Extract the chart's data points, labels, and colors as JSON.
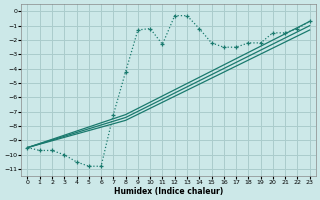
{
  "xlabel": "Humidex (Indice chaleur)",
  "background_color": "#cce8e8",
  "grid_color": "#aacccc",
  "line_color": "#1a7a6e",
  "xlim": [
    -0.5,
    23.5
  ],
  "ylim": [
    -11.5,
    0.5
  ],
  "xticks": [
    0,
    1,
    2,
    3,
    4,
    5,
    6,
    7,
    8,
    9,
    10,
    11,
    12,
    13,
    14,
    15,
    16,
    17,
    18,
    19,
    20,
    21,
    22,
    23
  ],
  "yticks": [
    0,
    -1,
    -2,
    -3,
    -4,
    -5,
    -6,
    -7,
    -8,
    -9,
    -10,
    -11
  ],
  "series_dotted_x": [
    0,
    1,
    2,
    3,
    4,
    5,
    6,
    7,
    8,
    9,
    10,
    11,
    12,
    13,
    14,
    15,
    16,
    17,
    18,
    19,
    20,
    21,
    22,
    23
  ],
  "series_dotted_y": [
    -9.5,
    -9.7,
    -9.7,
    -10.0,
    -10.5,
    -10.8,
    -10.8,
    -7.2,
    -4.2,
    -1.3,
    -1.2,
    -2.3,
    -0.3,
    -0.3,
    -1.2,
    -2.2,
    -2.5,
    -2.5,
    -2.2,
    -2.2,
    -1.5,
    -1.5,
    -1.2,
    -0.7
  ],
  "line1_x": [
    0,
    8,
    23
  ],
  "line1_y": [
    -9.5,
    -7.2,
    -0.7
  ],
  "line2_x": [
    0,
    8,
    23
  ],
  "line2_y": [
    -9.5,
    -7.4,
    -1.0
  ],
  "line3_x": [
    0,
    8,
    23
  ],
  "line3_y": [
    -9.5,
    -7.6,
    -1.3
  ]
}
